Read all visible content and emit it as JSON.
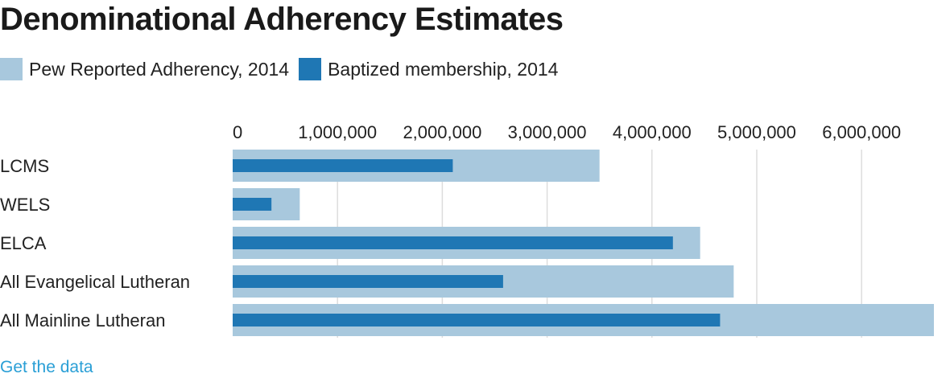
{
  "title": "Denominational Adherency Estimates",
  "colors": {
    "pew": "#a8c8dd",
    "baptized": "#1f77b4",
    "grid": "#dddddd",
    "link": "#2a9fd6"
  },
  "legend": [
    {
      "name": "Pew Reported Adherency, 2014",
      "color": "#a8c8dd"
    },
    {
      "name": "Baptized membership, 2014",
      "color": "#1f77b4"
    }
  ],
  "link_text": "Get the data",
  "chart_data": {
    "type": "bar",
    "orientation": "horizontal",
    "title": "Denominational Adherency Estimates",
    "categories": [
      "LCMS",
      "WELS",
      "ELCA",
      "All Evangelical Lutheran",
      "All Mainline Lutheran"
    ],
    "series": [
      {
        "name": "Pew Reported Adherency, 2014",
        "values": [
          3500000,
          640000,
          4460000,
          4780000,
          6690000
        ]
      },
      {
        "name": "Baptized membership, 2014",
        "values": [
          2100000,
          370000,
          4200000,
          2580000,
          4650000
        ]
      }
    ],
    "xlim": [
      0,
      6690000
    ],
    "ticks": [
      0,
      1000000,
      2000000,
      3000000,
      4000000,
      5000000,
      6000000
    ],
    "tick_labels": [
      "0",
      "1,000,000",
      "2,000,000",
      "3,000,000",
      "4,000,000",
      "5,000,000",
      "6,000,000"
    ],
    "grid": true,
    "legend_position": "top-left",
    "xlabel": "",
    "ylabel": ""
  }
}
